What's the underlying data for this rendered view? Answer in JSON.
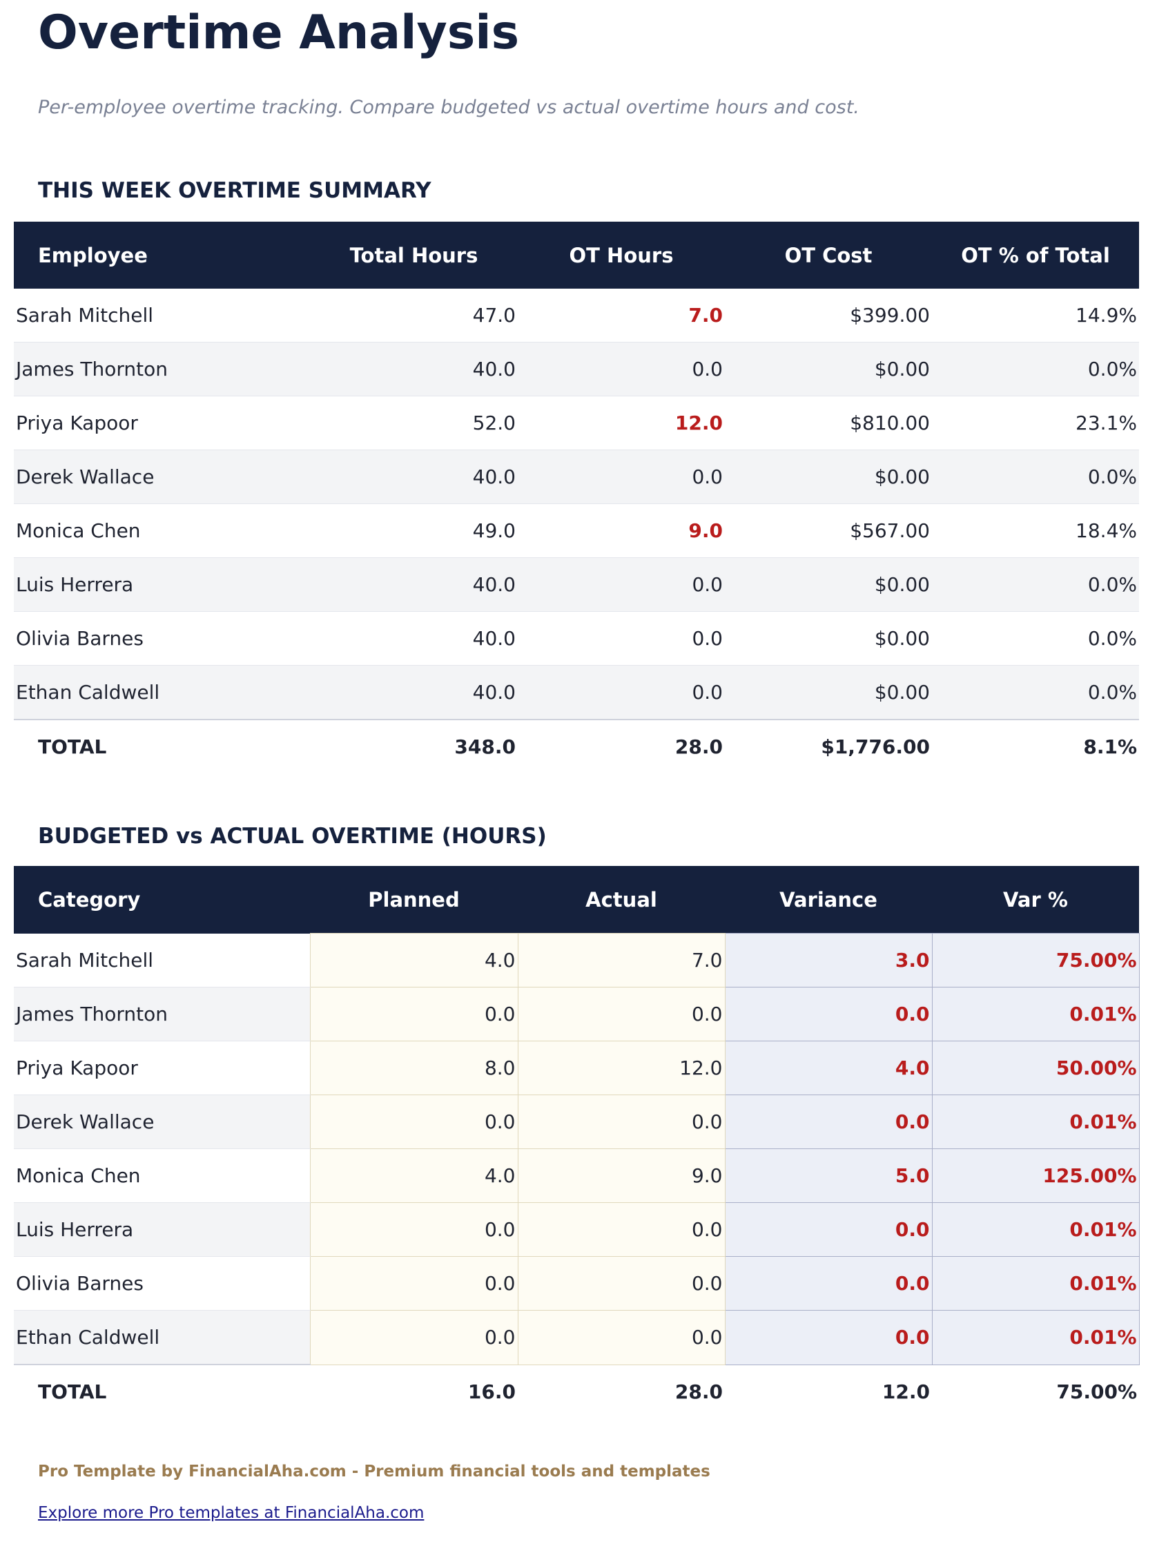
{
  "title": "Overtime Analysis",
  "subtitle": "Per-employee overtime tracking. Compare budgeted vs actual overtime hours and cost.",
  "summary": {
    "heading": "THIS WEEK OVERTIME SUMMARY",
    "columns": [
      "Employee",
      "Total Hours",
      "OT Hours",
      "OT Cost",
      "OT % of Total"
    ],
    "rows": [
      {
        "employee": "Sarah Mitchell",
        "total_hours": "47.0",
        "ot_hours": "7.0",
        "ot_cost": "$399.00",
        "ot_pct": "14.9%"
      },
      {
        "employee": "James Thornton",
        "total_hours": "40.0",
        "ot_hours": "0.0",
        "ot_cost": "$0.00",
        "ot_pct": "0.0%"
      },
      {
        "employee": "Priya Kapoor",
        "total_hours": "52.0",
        "ot_hours": "12.0",
        "ot_cost": "$810.00",
        "ot_pct": "23.1%"
      },
      {
        "employee": "Derek Wallace",
        "total_hours": "40.0",
        "ot_hours": "0.0",
        "ot_cost": "$0.00",
        "ot_pct": "0.0%"
      },
      {
        "employee": "Monica Chen",
        "total_hours": "49.0",
        "ot_hours": "9.0",
        "ot_cost": "$567.00",
        "ot_pct": "18.4%"
      },
      {
        "employee": "Luis Herrera",
        "total_hours": "40.0",
        "ot_hours": "0.0",
        "ot_cost": "$0.00",
        "ot_pct": "0.0%"
      },
      {
        "employee": "Olivia Barnes",
        "total_hours": "40.0",
        "ot_hours": "0.0",
        "ot_cost": "$0.00",
        "ot_pct": "0.0%"
      },
      {
        "employee": "Ethan Caldwell",
        "total_hours": "40.0",
        "ot_hours": "0.0",
        "ot_cost": "$0.00",
        "ot_pct": "0.0%"
      }
    ],
    "total": {
      "label": "TOTAL",
      "total_hours": "348.0",
      "ot_hours": "28.0",
      "ot_cost": "$1,776.00",
      "ot_pct": "8.1%"
    }
  },
  "budget": {
    "heading": "BUDGETED vs ACTUAL OVERTIME (HOURS)",
    "columns": [
      "Category",
      "Planned",
      "Actual",
      "Variance",
      "Var %"
    ],
    "rows": [
      {
        "category": "Sarah Mitchell",
        "planned": "4.0",
        "actual": "7.0",
        "variance": "3.0",
        "var_pct": "75.00%"
      },
      {
        "category": "James Thornton",
        "planned": "0.0",
        "actual": "0.0",
        "variance": "0.0",
        "var_pct": "0.01%"
      },
      {
        "category": "Priya Kapoor",
        "planned": "8.0",
        "actual": "12.0",
        "variance": "4.0",
        "var_pct": "50.00%"
      },
      {
        "category": "Derek Wallace",
        "planned": "0.0",
        "actual": "0.0",
        "variance": "0.0",
        "var_pct": "0.01%"
      },
      {
        "category": "Monica Chen",
        "planned": "4.0",
        "actual": "9.0",
        "variance": "5.0",
        "var_pct": "125.00%"
      },
      {
        "category": "Luis Herrera",
        "planned": "0.0",
        "actual": "0.0",
        "variance": "0.0",
        "var_pct": "0.01%"
      },
      {
        "category": "Olivia Barnes",
        "planned": "0.0",
        "actual": "0.0",
        "variance": "0.0",
        "var_pct": "0.01%"
      },
      {
        "category": "Ethan Caldwell",
        "planned": "0.0",
        "actual": "0.0",
        "variance": "0.0",
        "var_pct": "0.01%"
      }
    ],
    "total": {
      "label": "TOTAL",
      "planned": "16.0",
      "actual": "28.0",
      "variance": "12.0",
      "var_pct": "75.00%"
    }
  },
  "footer": {
    "promo": "Pro Template by FinancialAha.com - Premium financial tools and templates",
    "link": "Explore more Pro templates at FinancialAha.com"
  },
  "colors": {
    "header_bg": "#15213d",
    "alert_red": "#b91c1c",
    "promo": "#9a7b4f"
  }
}
